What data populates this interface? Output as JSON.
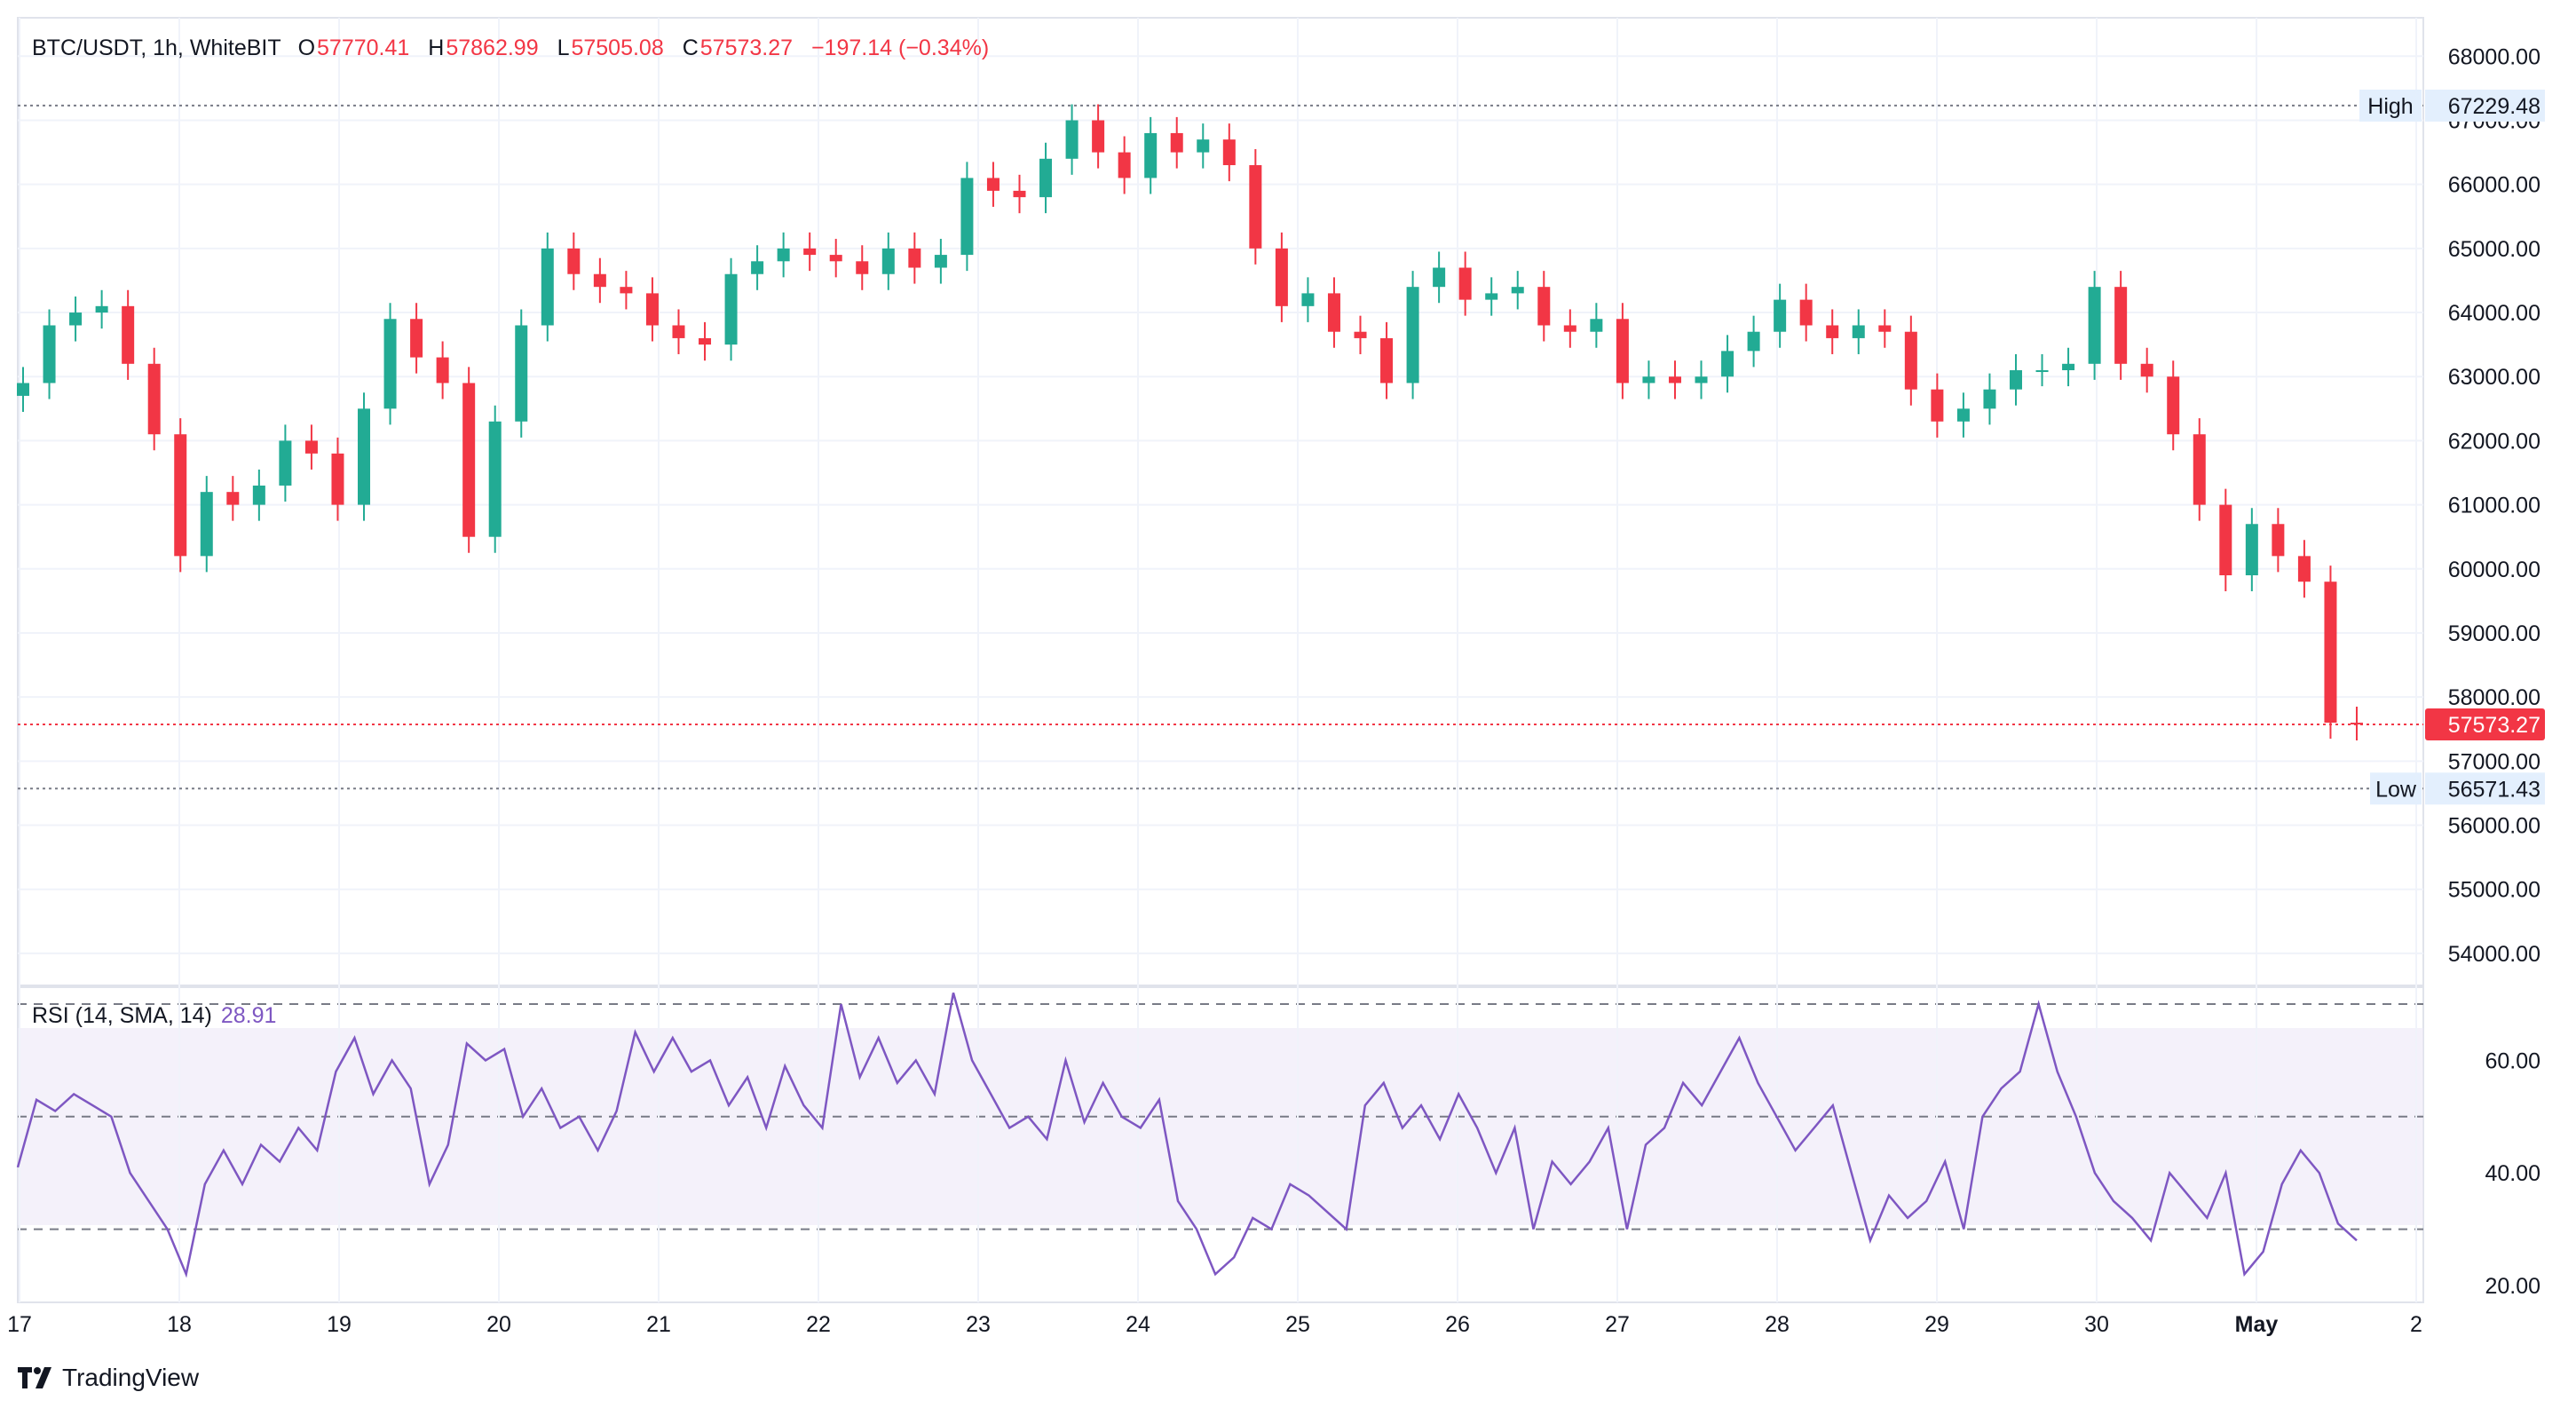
{
  "header": {
    "symbol": "BTC/USDT, 1h, WhiteBIT",
    "open_label": "O",
    "open": "57770.41",
    "high_label": "H",
    "high": "57862.99",
    "low_label": "L",
    "low": "57505.08",
    "close_label": "C",
    "close": "57573.27",
    "change": "−197.14 (−0.34%)"
  },
  "rsi_legend": {
    "label": "RSI (14, SMA, 14)",
    "value": "28.91"
  },
  "footer": {
    "brand": "TradingView"
  },
  "colors": {
    "up": "#22ab94",
    "down": "#f23645",
    "rsi": "#7e57c2",
    "rsi_band": "#ede7f6",
    "grid": "#f0f3fa",
    "axis_text": "#131722"
  },
  "chart_data": [
    {
      "type": "candlestick",
      "title": "BTC/USDT, 1h, WhiteBIT",
      "ylim": [
        53500,
        68600
      ],
      "y_ticks": [
        "68000.00",
        "67000.00",
        "66000.00",
        "65000.00",
        "64000.00",
        "63000.00",
        "62000.00",
        "61000.00",
        "60000.00",
        "59000.00",
        "58000.00",
        "57000.00",
        "56000.00",
        "55000.00",
        "54000.00"
      ],
      "x_ticks": [
        "17",
        "18",
        "19",
        "20",
        "21",
        "22",
        "23",
        "24",
        "25",
        "26",
        "27",
        "28",
        "29",
        "30",
        "May",
        "2"
      ],
      "high_marker": {
        "label": "High",
        "value": "67229.48"
      },
      "low_marker": {
        "label": "Low",
        "value": "56571.43"
      },
      "last_price": {
        "value": "57573.27"
      },
      "close_series": [
        62900,
        63800,
        64000,
        64100,
        63200,
        62100,
        60200,
        61200,
        61000,
        61300,
        62000,
        61800,
        61000,
        62500,
        63900,
        63300,
        62900,
        60500,
        62300,
        63800,
        65000,
        64600,
        64400,
        64300,
        63800,
        63600,
        63500,
        64600,
        64800,
        65000,
        64900,
        64800,
        64600,
        65000,
        64700,
        64900,
        66100,
        65900,
        65800,
        66400,
        67000,
        66500,
        66100,
        66800,
        66500,
        66700,
        66300,
        65000,
        64100,
        64300,
        63700,
        63600,
        62900,
        64400,
        64700,
        64200,
        64300,
        64400,
        63800,
        63700,
        63900,
        62900,
        63000,
        62900,
        63000,
        63400,
        63700,
        64200,
        63800,
        63600,
        63800,
        63700,
        62800,
        62300,
        62500,
        62800,
        63100,
        63100,
        63200,
        64400,
        63200,
        63000,
        62100,
        61000,
        59900,
        60700,
        60200,
        59800,
        57600,
        57573
      ]
    },
    {
      "type": "line",
      "title": "RSI (14, SMA, 14)",
      "ylim": [
        17,
        73
      ],
      "y_ticks": [
        "60.00",
        "40.00",
        "20.00"
      ],
      "bands": {
        "upper": 70,
        "middle": 50,
        "lower": 30
      },
      "x_ticks": [
        "17",
        "18",
        "19",
        "20",
        "21",
        "22",
        "23",
        "24",
        "25",
        "26",
        "27",
        "28",
        "29",
        "30",
        "May",
        "2"
      ],
      "series": [
        {
          "values": [
            41,
            53,
            51,
            54,
            52,
            50,
            40,
            35,
            30,
            22,
            38,
            44,
            38,
            45,
            42,
            48,
            44,
            58,
            64,
            54,
            60,
            55,
            38,
            45,
            63,
            60,
            62,
            50,
            55,
            48,
            50,
            44,
            51,
            65,
            58,
            64,
            58,
            60,
            52,
            57,
            48,
            59,
            52,
            48,
            70,
            57,
            64,
            56,
            60,
            54,
            72,
            60,
            54,
            48,
            50,
            46,
            60,
            49,
            56,
            50,
            48,
            53,
            35,
            30,
            22,
            25,
            32,
            30,
            38,
            36,
            33,
            30,
            52,
            56,
            48,
            52,
            46,
            54,
            48,
            40,
            48,
            30,
            42,
            38,
            42,
            48,
            30,
            45,
            48,
            56,
            52,
            58,
            64,
            56,
            50,
            44,
            48,
            52,
            40,
            28,
            36,
            32,
            35,
            42,
            30,
            50,
            55,
            58,
            70,
            58,
            50,
            40,
            35,
            32,
            28,
            40,
            36,
            32,
            40,
            22,
            26,
            38,
            44,
            40,
            31,
            28
          ]
        }
      ]
    }
  ]
}
